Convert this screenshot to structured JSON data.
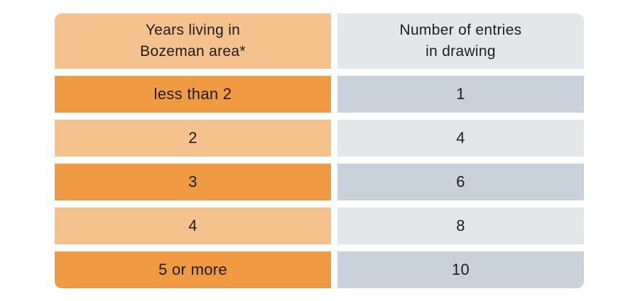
{
  "table": {
    "columns": [
      {
        "line1": "Years living in",
        "line2": "Bozeman area*"
      },
      {
        "line1": "Number of entries",
        "line2": "in drawing"
      }
    ],
    "rows": [
      {
        "years": "less than 2",
        "entries": "1"
      },
      {
        "years": "2",
        "entries": "4"
      },
      {
        "years": "3",
        "entries": "6"
      },
      {
        "years": "4",
        "entries": "8"
      },
      {
        "years": "5 or more",
        "entries": "10"
      }
    ],
    "colors": {
      "orange_light": "#f5c18c",
      "orange_dark": "#f09b44",
      "gray_light": "#e3e7ea",
      "gray_dark": "#c9d1da",
      "text": "#1d1d1f",
      "background": "#ffffff"
    }
  },
  "chart_data": {
    "type": "table",
    "title": "",
    "columns": [
      "Years living in Bozeman area*",
      "Number of entries in drawing"
    ],
    "rows": [
      [
        "less than 2",
        1
      ],
      [
        "2",
        4
      ],
      [
        "3",
        6
      ],
      [
        "4",
        8
      ],
      [
        "5 or more",
        10
      ]
    ]
  }
}
